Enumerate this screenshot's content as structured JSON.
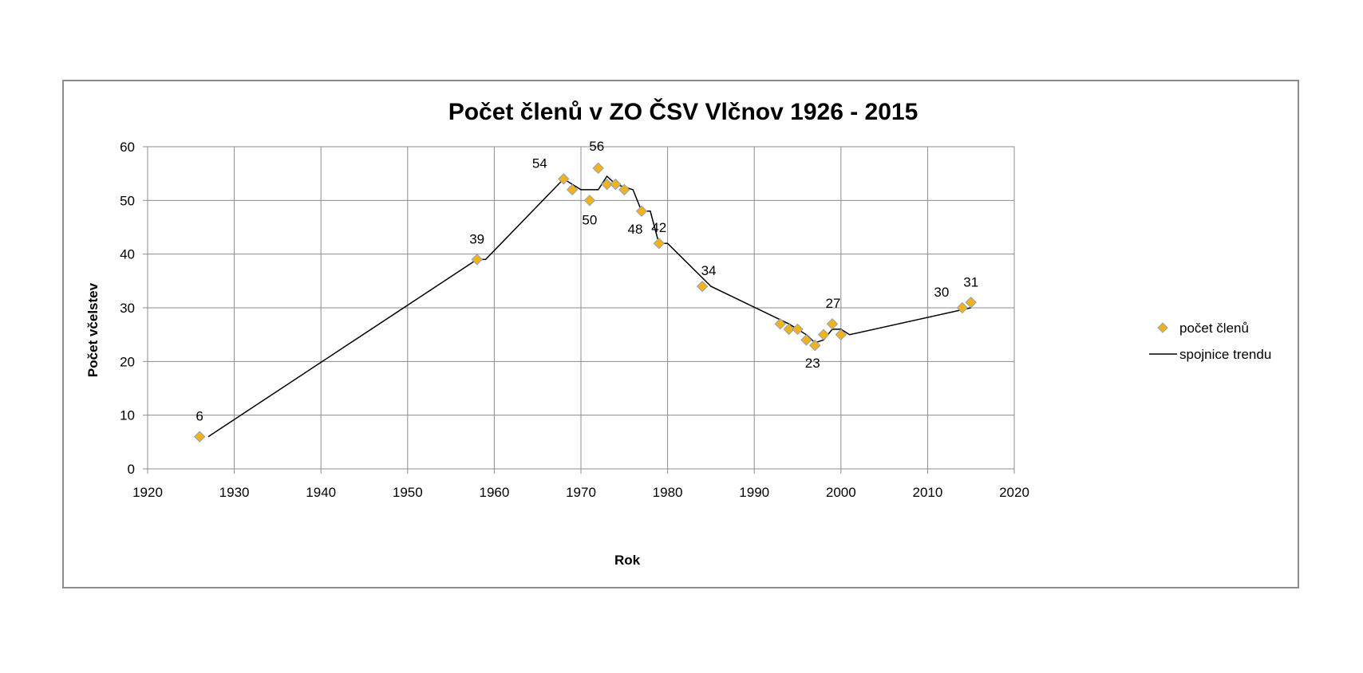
{
  "chart_data": {
    "type": "scatter",
    "title": "Počet členů v ZO ČSV Vlčnov 1926 - 2015",
    "xlabel": "Rok",
    "ylabel": "Počet včelstev",
    "xlim": [
      1920,
      2020
    ],
    "ylim": [
      0,
      60
    ],
    "x_ticks": [
      1920,
      1930,
      1940,
      1950,
      1960,
      1970,
      1980,
      1990,
      2000,
      2010,
      2020
    ],
    "y_ticks": [
      0,
      10,
      20,
      30,
      40,
      50,
      60
    ],
    "grid": true,
    "legend_position": "right",
    "series": [
      {
        "name": "počet členů",
        "type": "scatter",
        "color": "#f2b21c",
        "stroke": "#8ea2b8",
        "marker": "diamond",
        "points": [
          {
            "x": 1926,
            "y": 6,
            "label": "6"
          },
          {
            "x": 1958,
            "y": 39,
            "label": "39"
          },
          {
            "x": 1968,
            "y": 54,
            "label": "54"
          },
          {
            "x": 1969,
            "y": 52
          },
          {
            "x": 1971,
            "y": 50,
            "label": "50"
          },
          {
            "x": 1972,
            "y": 56,
            "label": "56"
          },
          {
            "x": 1973,
            "y": 53
          },
          {
            "x": 1974,
            "y": 53
          },
          {
            "x": 1975,
            "y": 52
          },
          {
            "x": 1977,
            "y": 48,
            "label": "48"
          },
          {
            "x": 1979,
            "y": 42,
            "label": "42"
          },
          {
            "x": 1984,
            "y": 34,
            "label": "34"
          },
          {
            "x": 1993,
            "y": 27
          },
          {
            "x": 1994,
            "y": 26
          },
          {
            "x": 1995,
            "y": 26
          },
          {
            "x": 1996,
            "y": 24
          },
          {
            "x": 1997,
            "y": 23,
            "label": "23"
          },
          {
            "x": 1998,
            "y": 25
          },
          {
            "x": 1999,
            "y": 27,
            "label": "27"
          },
          {
            "x": 2000,
            "y": 25
          },
          {
            "x": 2014,
            "y": 30,
            "label": "30"
          },
          {
            "x": 2015,
            "y": 31,
            "label": "31"
          }
        ]
      },
      {
        "name": "spojnice trendu",
        "type": "line",
        "color": "#000000",
        "points": [
          {
            "x": 1927,
            "y": 6
          },
          {
            "x": 1958,
            "y": 39
          },
          {
            "x": 1959,
            "y": 39
          },
          {
            "x": 1968,
            "y": 54
          },
          {
            "x": 1970,
            "y": 52
          },
          {
            "x": 1972,
            "y": 52
          },
          {
            "x": 1973,
            "y": 54.5
          },
          {
            "x": 1974,
            "y": 53
          },
          {
            "x": 1975,
            "y": 52.5
          },
          {
            "x": 1976,
            "y": 52
          },
          {
            "x": 1977,
            "y": 48
          },
          {
            "x": 1978,
            "y": 48
          },
          {
            "x": 1979,
            "y": 42
          },
          {
            "x": 1980,
            "y": 42
          },
          {
            "x": 1985,
            "y": 34
          },
          {
            "x": 1994,
            "y": 27
          },
          {
            "x": 1995,
            "y": 26
          },
          {
            "x": 1996,
            "y": 25
          },
          {
            "x": 1997,
            "y": 23.5
          },
          {
            "x": 1998,
            "y": 24
          },
          {
            "x": 1999,
            "y": 26
          },
          {
            "x": 2000,
            "y": 26
          },
          {
            "x": 2001,
            "y": 25
          },
          {
            "x": 2015,
            "y": 30
          }
        ]
      }
    ]
  }
}
